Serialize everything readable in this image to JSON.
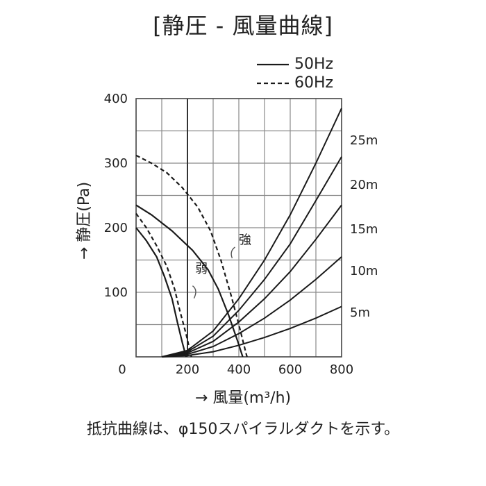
{
  "chart_data": {
    "type": "line",
    "title": "[静圧 - 風量曲線]",
    "xlabel": "→ 風量(m³/h)",
    "ylabel": "→ 静圧(Pa)",
    "xlim": [
      0,
      800
    ],
    "ylim": [
      0,
      400
    ],
    "x_ticks": [
      "0",
      "200",
      "400",
      "600",
      "800"
    ],
    "y_ticks": [
      "100",
      "200",
      "300",
      "400"
    ],
    "grid": true,
    "legend": {
      "placement": "top-right",
      "entries": [
        {
          "label": "50Hz",
          "style": "solid"
        },
        {
          "label": "60Hz",
          "style": "dashed"
        }
      ]
    },
    "series": [
      {
        "legend": "50Hz",
        "mode": "強",
        "style": "solid",
        "points": [
          [
            0,
            235
          ],
          [
            60,
            220
          ],
          [
            140,
            195
          ],
          [
            220,
            165
          ],
          [
            280,
            135
          ],
          [
            320,
            105
          ],
          [
            360,
            65
          ],
          [
            395,
            25
          ],
          [
            415,
            0
          ]
        ]
      },
      {
        "legend": "60Hz",
        "mode": "強",
        "style": "dashed",
        "points": [
          [
            0,
            312
          ],
          [
            60,
            300
          ],
          [
            120,
            285
          ],
          [
            180,
            262
          ],
          [
            240,
            232
          ],
          [
            290,
            195
          ],
          [
            330,
            150
          ],
          [
            370,
            95
          ],
          [
            400,
            50
          ],
          [
            425,
            10
          ],
          [
            432,
            0
          ]
        ]
      },
      {
        "legend": "50Hz",
        "mode": "弱",
        "style": "solid",
        "points": [
          [
            0,
            200
          ],
          [
            40,
            180
          ],
          [
            80,
            155
          ],
          [
            110,
            125
          ],
          [
            140,
            90
          ],
          [
            160,
            55
          ],
          [
            180,
            22
          ],
          [
            195,
            0
          ]
        ]
      },
      {
        "legend": "60Hz",
        "mode": "弱",
        "style": "dashed",
        "points": [
          [
            0,
            222
          ],
          [
            40,
            200
          ],
          [
            80,
            172
          ],
          [
            120,
            140
          ],
          [
            150,
            105
          ],
          [
            170,
            72
          ],
          [
            195,
            35
          ],
          [
            215,
            0
          ]
        ]
      }
    ],
    "resistance_curves": [
      {
        "label": "25m",
        "points": [
          [
            100,
            0
          ],
          [
            200,
            10
          ],
          [
            300,
            40
          ],
          [
            400,
            90
          ],
          [
            500,
            150
          ],
          [
            600,
            220
          ],
          [
            700,
            300
          ],
          [
            800,
            385
          ]
        ]
      },
      {
        "label": "20m",
        "points": [
          [
            100,
            0
          ],
          [
            200,
            8
          ],
          [
            300,
            32
          ],
          [
            400,
            72
          ],
          [
            500,
            120
          ],
          [
            600,
            175
          ],
          [
            700,
            242
          ],
          [
            800,
            310
          ]
        ]
      },
      {
        "label": "15m",
        "points": [
          [
            100,
            0
          ],
          [
            200,
            6
          ],
          [
            300,
            24
          ],
          [
            400,
            54
          ],
          [
            500,
            90
          ],
          [
            600,
            132
          ],
          [
            700,
            182
          ],
          [
            800,
            235
          ]
        ]
      },
      {
        "label": "10m",
        "points": [
          [
            100,
            0
          ],
          [
            200,
            4
          ],
          [
            300,
            16
          ],
          [
            400,
            36
          ],
          [
            500,
            60
          ],
          [
            600,
            88
          ],
          [
            700,
            120
          ],
          [
            800,
            155
          ]
        ]
      },
      {
        "label": "5m",
        "points": [
          [
            100,
            0
          ],
          [
            200,
            2
          ],
          [
            300,
            8
          ],
          [
            400,
            18
          ],
          [
            500,
            30
          ],
          [
            600,
            44
          ],
          [
            700,
            60
          ],
          [
            800,
            78
          ]
        ]
      }
    ],
    "annotations": [
      {
        "text": "強",
        "x": 400,
        "y": 175
      },
      {
        "text": "弱",
        "x": 230,
        "y": 130
      }
    ]
  },
  "footnote": "抵抗曲線は、φ150スパイラルダクトを示す。"
}
